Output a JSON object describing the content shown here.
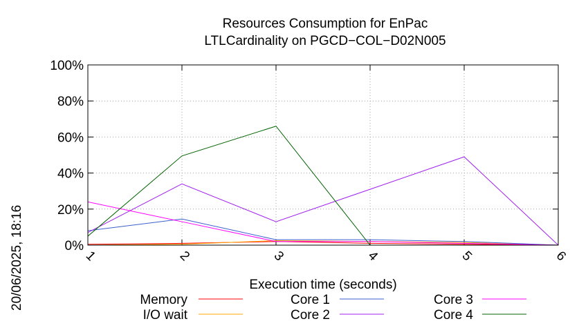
{
  "chart_data": {
    "type": "line",
    "title": [
      "Resources Consumption for EnPac",
      "LTLCardinality on PGCD−COL−D02N005"
    ],
    "xlabel": "Execution time (seconds)",
    "ylabel": "",
    "x": [
      1,
      2,
      3,
      4,
      5,
      6
    ],
    "xlim": [
      1,
      6
    ],
    "ylim": [
      0,
      100
    ],
    "x_ticks": [
      "1",
      "2",
      "3",
      "4",
      "5",
      "6"
    ],
    "y_ticks": [
      "0%",
      "20%",
      "40%",
      "60%",
      "80%",
      "100%"
    ],
    "y_tick_values": [
      0,
      20,
      40,
      60,
      80,
      100
    ],
    "grid": true,
    "legend_position": "bottom",
    "timestamp": "20/06/2025, 18:16",
    "series": [
      {
        "name": "Memory",
        "color": "#ff0000",
        "values": [
          0.5,
          1.0,
          2.0,
          1.0,
          0.5,
          0
        ]
      },
      {
        "name": "I/O wait",
        "color": "#ffa500",
        "values": [
          0,
          0.5,
          2.5,
          2.0,
          1.5,
          0
        ]
      },
      {
        "name": "Core 1",
        "color": "#3a5fcd",
        "values": [
          8,
          14.5,
          3,
          3,
          2,
          0
        ]
      },
      {
        "name": "Core 2",
        "color": "#a020f0",
        "values": [
          7,
          34,
          13,
          31,
          49,
          0
        ]
      },
      {
        "name": "Core 3",
        "color": "#ff00ff",
        "values": [
          24,
          13,
          2,
          2,
          1,
          0
        ]
      },
      {
        "name": "Core 4",
        "color": "#006400",
        "values": [
          5,
          49.5,
          66,
          0,
          0,
          0
        ]
      }
    ]
  }
}
